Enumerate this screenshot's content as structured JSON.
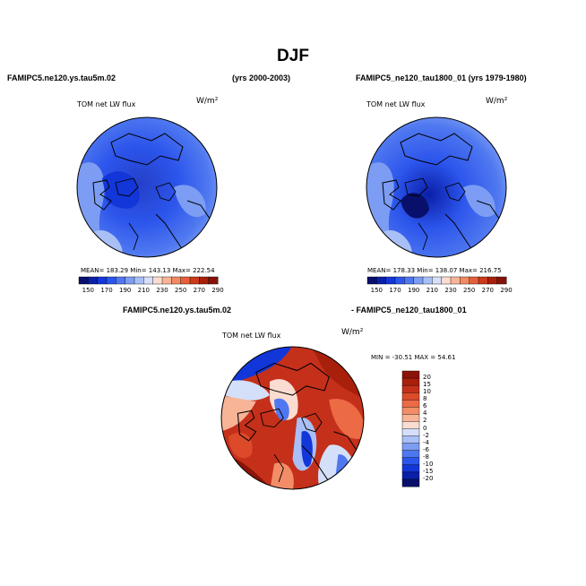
{
  "figure": {
    "season_title": "DJF",
    "left_run_title": "FAMIPC5.ne120.ys.tau5m.02",
    "left_years": "(yrs 2000-2003)",
    "right_run_title": "FAMIPC5_ne120_tau1800_01 (yrs 1979-1980)",
    "diff_title_left": "FAMIPC5.ne120.ys.tau5m.02",
    "diff_title_right": "- FAMIPC5_ne120_tau1800_01"
  },
  "panels": {
    "left": {
      "variable": "TOM net LW flux",
      "units": "W/m²",
      "stats": "MEAN= 183.29   Min= 143.13   Max= 222.54"
    },
    "right": {
      "variable": "TOM net LW flux",
      "units": "W/m²",
      "stats": "MEAN= 178.33   Min= 138.07   Max= 216.75"
    },
    "diff": {
      "variable": "TOM net LW flux",
      "units": "W/m²",
      "stats": "MIN = -30.51  MAX =  54.61"
    }
  },
  "colorbar_abs": {
    "labels": [
      "150",
      "170",
      "190",
      "210",
      "230",
      "250",
      "270",
      "290"
    ],
    "colors": [
      "#08106b",
      "#0a1fa8",
      "#1236d8",
      "#2c55ec",
      "#4f78f0",
      "#7c9df3",
      "#a9c0f6",
      "#d4e0fa",
      "#fbdcd0",
      "#f7b496",
      "#f18a62",
      "#e4603a",
      "#cc3a1a",
      "#a8200c",
      "#85120a"
    ]
  },
  "colorbar_diff": {
    "labels": [
      "20",
      "15",
      "10",
      "8",
      "6",
      "4",
      "2",
      "0",
      "-2",
      "-4",
      "-6",
      "-8",
      "-10",
      "-15",
      "-20"
    ],
    "colors": [
      "#8b1408",
      "#a8200c",
      "#c5301a",
      "#dc4a2a",
      "#ec6a44",
      "#f38d68",
      "#f7b496",
      "#fbdcd0",
      "#d4e0fa",
      "#a9c0f6",
      "#7c9df3",
      "#4f78f0",
      "#2c55ec",
      "#1236d8",
      "#0a1fa8",
      "#08106b"
    ]
  }
}
